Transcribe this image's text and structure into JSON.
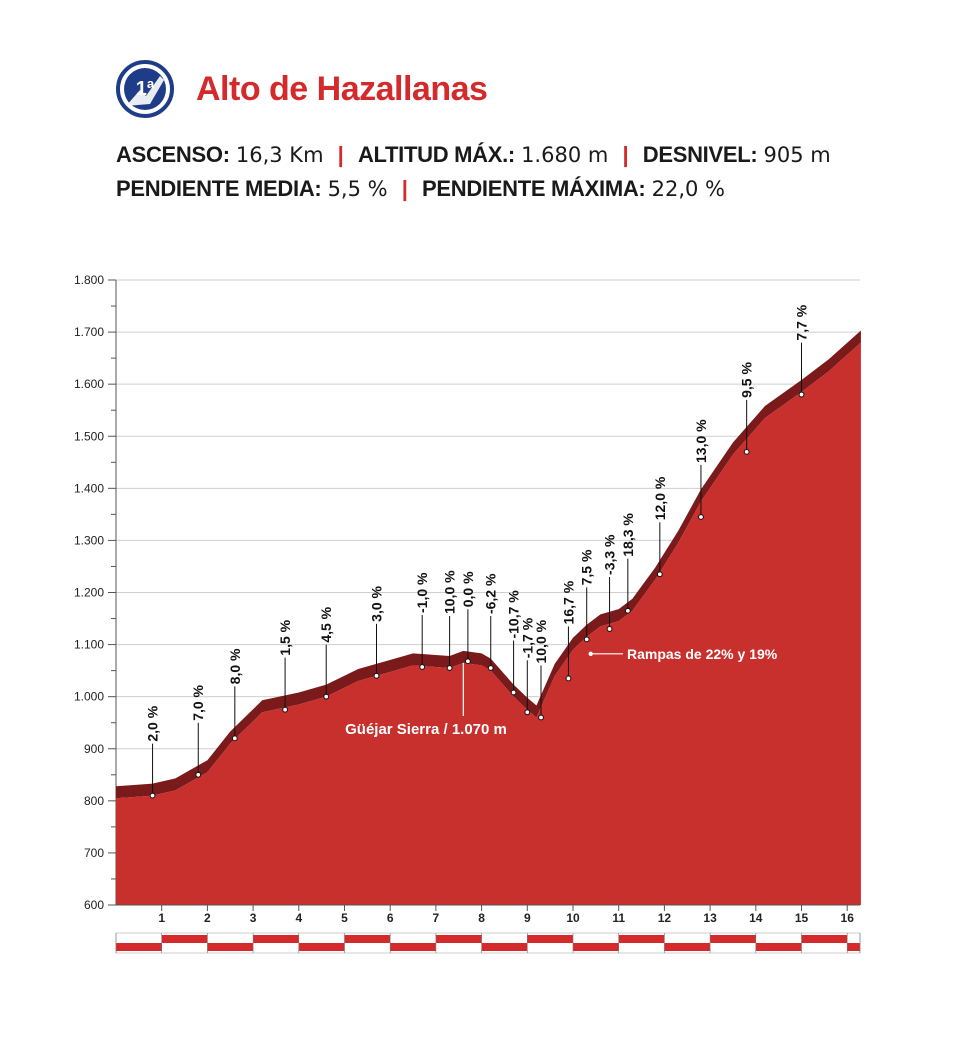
{
  "header": {
    "category_badge": "1ª",
    "title": "Alto de Hazallanas",
    "stats": [
      {
        "label": "ASCENSO:",
        "value": "16,3 Km"
      },
      {
        "label": "ALTITUD MÁX.:",
        "value": "1.680 m"
      },
      {
        "label": "DESNIVEL:",
        "value": "905 m"
      },
      {
        "label": "PENDIENTE MEDIA:",
        "value": "5,5 %"
      },
      {
        "label": "PENDIENTE MÁXIMA:",
        "value": "22,0 %"
      }
    ]
  },
  "colors": {
    "accent": "#d42a2c",
    "profile_fill": "#c8302d",
    "profile_top": "#7a1a1a",
    "badge_blue": "#1f3c88"
  },
  "chart_data": {
    "type": "area",
    "xlabel": "",
    "ylabel": "",
    "xlim": [
      0,
      16.3
    ],
    "ylim": [
      600,
      1800
    ],
    "grid": true,
    "y_ticks": [
      {
        "value": 600,
        "label": "600"
      },
      {
        "value": 700,
        "label": "700"
      },
      {
        "value": 800,
        "label": "800"
      },
      {
        "value": 900,
        "label": "900"
      },
      {
        "value": 1000,
        "label": "1.000"
      },
      {
        "value": 1100,
        "label": "1.100"
      },
      {
        "value": 1200,
        "label": "1.200"
      },
      {
        "value": 1300,
        "label": "1.300"
      },
      {
        "value": 1400,
        "label": "1.400"
      },
      {
        "value": 1500,
        "label": "1.500"
      },
      {
        "value": 1600,
        "label": "1.600"
      },
      {
        "value": 1700,
        "label": "1.700"
      },
      {
        "value": 1800,
        "label": "1.800"
      }
    ],
    "x_ticks": [
      "1",
      "2",
      "3",
      "4",
      "5",
      "6",
      "7",
      "8",
      "9",
      "10",
      "11",
      "12",
      "13",
      "14",
      "15",
      "16"
    ],
    "profile": {
      "x": [
        0,
        0.8,
        1.3,
        2.0,
        2.5,
        3.2,
        4.0,
        4.6,
        5.3,
        5.9,
        6.5,
        7.3,
        7.6,
        8.0,
        8.2,
        8.7,
        9.0,
        9.2,
        9.6,
        10.0,
        10.3,
        10.6,
        11.0,
        11.3,
        11.8,
        12.3,
        12.8,
        13.5,
        14.2,
        15.0,
        15.6,
        16.3
      ],
      "elevation": [
        805,
        810,
        820,
        855,
        910,
        970,
        985,
        1000,
        1030,
        1045,
        1060,
        1055,
        1065,
        1060,
        1050,
        1000,
        975,
        960,
        1040,
        1090,
        1115,
        1135,
        1145,
        1165,
        1225,
        1295,
        1375,
        1465,
        1535,
        1585,
        1625,
        1680
      ]
    },
    "gradients": [
      {
        "label": "2,0 %",
        "x": 0.8,
        "elevation": 810
      },
      {
        "label": "7,0 %",
        "x": 1.8,
        "elevation": 850
      },
      {
        "label": "8,0 %",
        "x": 2.6,
        "elevation": 920
      },
      {
        "label": "1,5 %",
        "x": 3.7,
        "elevation": 975
      },
      {
        "label": "4,5 %",
        "x": 4.6,
        "elevation": 1000
      },
      {
        "label": "3,0 %",
        "x": 5.7,
        "elevation": 1040
      },
      {
        "label": "-1,0 %",
        "x": 6.7,
        "elevation": 1057
      },
      {
        "label": "10,0 %",
        "x": 7.3,
        "elevation": 1055
      },
      {
        "label": "0,0 %",
        "x": 7.7,
        "elevation": 1068
      },
      {
        "label": "-6,2 %",
        "x": 8.2,
        "elevation": 1055
      },
      {
        "label": "-10,7 %",
        "x": 8.7,
        "elevation": 1008
      },
      {
        "label": "-1,7 %",
        "x": 9.0,
        "elevation": 970
      },
      {
        "label": "10,0 %",
        "x": 9.3,
        "elevation": 960
      },
      {
        "label": "16,7 %",
        "x": 9.9,
        "elevation": 1035
      },
      {
        "label": "7,5 %",
        "x": 10.3,
        "elevation": 1110
      },
      {
        "label": "-3,3 %",
        "x": 10.8,
        "elevation": 1130
      },
      {
        "label": "18,3 %",
        "x": 11.2,
        "elevation": 1165
      },
      {
        "label": "12,0 %",
        "x": 11.9,
        "elevation": 1235
      },
      {
        "label": "13,0 %",
        "x": 12.8,
        "elevation": 1345
      },
      {
        "label": "9,5 %",
        "x": 13.8,
        "elevation": 1470
      },
      {
        "label": "7,7 %",
        "x": 15.0,
        "elevation": 1580
      }
    ],
    "annotations": [
      {
        "label": "Güéjar Sierra / 1.070 m",
        "x": 7.6,
        "elevation": 1065
      },
      {
        "label": "Rampas de 22% y 19%",
        "x": 10.3,
        "elevation": 1090
      }
    ]
  }
}
